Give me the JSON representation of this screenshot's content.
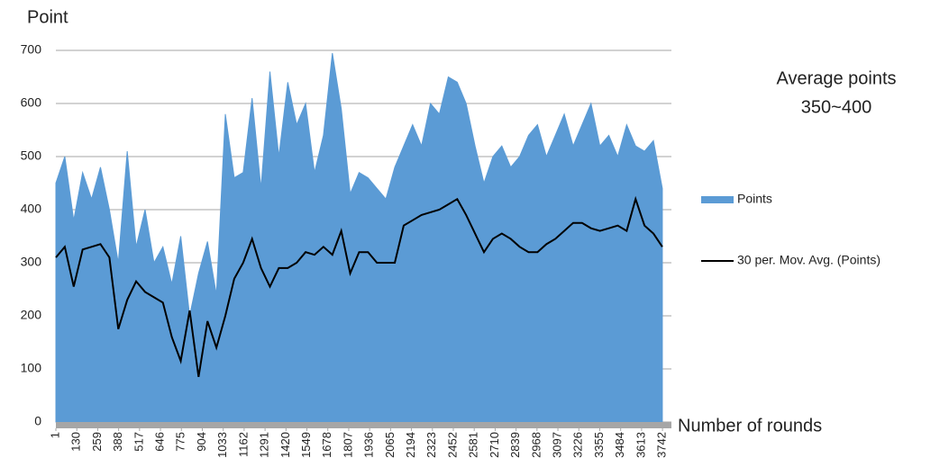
{
  "chart_data": {
    "type": "area-line",
    "y_label": "Point",
    "x_label": "Number of rounds",
    "annotation": [
      "Average points",
      "350~400"
    ],
    "xlim": [
      1,
      3797
    ],
    "ylim": [
      0,
      700
    ],
    "yticks": [
      0,
      100,
      200,
      300,
      400,
      500,
      600,
      700
    ],
    "xticks": [
      1,
      130,
      259,
      388,
      517,
      646,
      775,
      904,
      1033,
      1162,
      1291,
      1420,
      1549,
      1678,
      1807,
      1936,
      2065,
      2194,
      2323,
      2452,
      2581,
      2710,
      2839,
      2968,
      3097,
      3226,
      3355,
      3484,
      3613,
      3742
    ],
    "grid": true,
    "legend": "right",
    "x": [
      1,
      56,
      111,
      166,
      221,
      276,
      331,
      386,
      441,
      496,
      551,
      606,
      661,
      716,
      771,
      826,
      881,
      936,
      991,
      1046,
      1101,
      1156,
      1211,
      1266,
      1321,
      1376,
      1431,
      1486,
      1541,
      1596,
      1651,
      1706,
      1761,
      1816,
      1871,
      1926,
      1981,
      2036,
      2091,
      2146,
      2201,
      2256,
      2311,
      2366,
      2421,
      2476,
      2531,
      2586,
      2641,
      2696,
      2751,
      2806,
      2861,
      2916,
      2971,
      3026,
      3081,
      3136,
      3191,
      3246,
      3301,
      3356,
      3411,
      3466,
      3521,
      3576,
      3631,
      3686,
      3741
    ],
    "series": [
      {
        "name": "Points",
        "color": "#5b9bd5",
        "kind": "area",
        "values": [
          450,
          500,
          380,
          470,
          420,
          480,
          400,
          300,
          510,
          330,
          400,
          300,
          330,
          260,
          350,
          200,
          280,
          340,
          240,
          580,
          460,
          470,
          610,
          440,
          660,
          500,
          640,
          560,
          600,
          470,
          540,
          695,
          590,
          430,
          470,
          460,
          440,
          420,
          480,
          520,
          560,
          520,
          600,
          580,
          650,
          640,
          600,
          520,
          450,
          500,
          520,
          480,
          500,
          540,
          560,
          500,
          540,
          580,
          520,
          560,
          600,
          520,
          540,
          500,
          560,
          520,
          510,
          530,
          440
        ]
      },
      {
        "name": "30 per. Mov. Avg. (Points)",
        "color": "#000000",
        "kind": "line",
        "values": [
          310,
          330,
          255,
          325,
          330,
          335,
          310,
          175,
          230,
          265,
          245,
          235,
          225,
          160,
          115,
          210,
          85,
          190,
          140,
          200,
          270,
          300,
          345,
          290,
          255,
          290,
          290,
          300,
          320,
          315,
          330,
          315,
          360,
          280,
          320,
          320,
          300,
          300,
          300,
          370,
          380,
          390,
          395,
          400,
          410,
          420,
          390,
          355,
          320,
          345,
          355,
          345,
          330,
          320,
          320,
          335,
          345,
          360,
          375,
          375,
          365,
          360,
          365,
          370,
          360,
          420,
          370,
          355,
          330
        ]
      }
    ]
  }
}
